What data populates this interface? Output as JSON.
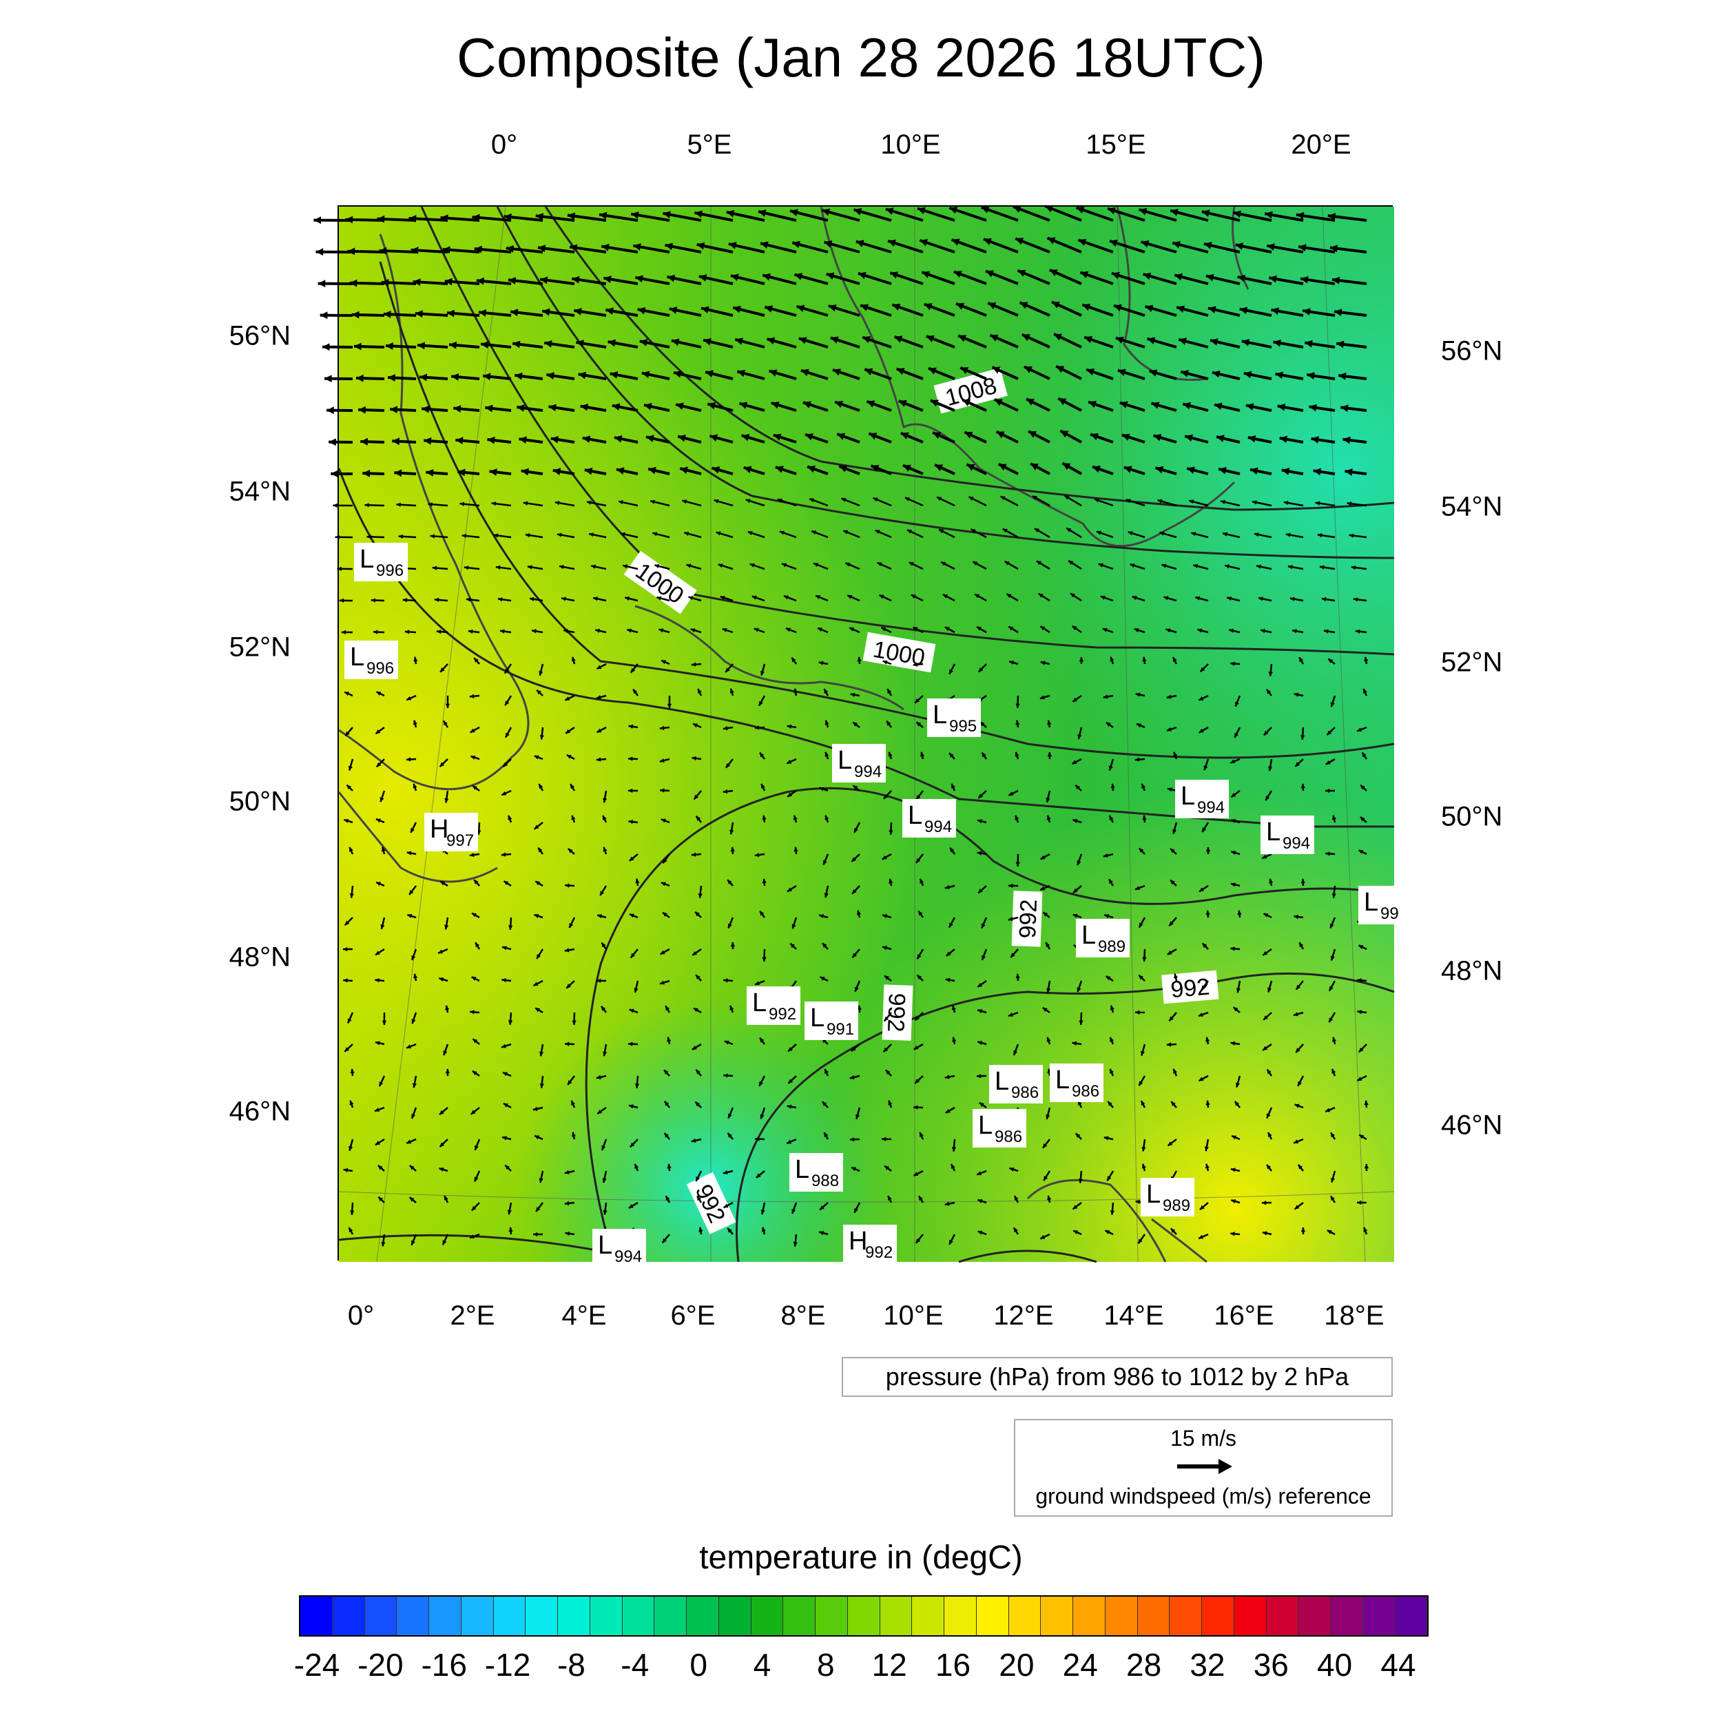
{
  "title": "Composite (Jan 28 2026 18UTC)",
  "map": {
    "top_lon_ticks": [
      "0°",
      "5°E",
      "10°E",
      "15°E",
      "20°E"
    ],
    "bottom_lon_ticks": [
      "0°",
      "2°E",
      "4°E",
      "6°E",
      "8°E",
      "10°E",
      "12°E",
      "14°E",
      "16°E",
      "18°E"
    ],
    "left_lat_ticks": [
      "56°N",
      "54°N",
      "52°N",
      "50°N",
      "48°N",
      "46°N"
    ],
    "right_lat_ticks": [
      "56°N",
      "54°N",
      "52°N",
      "50°N",
      "48°N",
      "46°N"
    ],
    "isobar_labels": [
      "1008",
      "1000",
      "1000",
      "992",
      "992",
      "992",
      "992"
    ],
    "pressure_centers": [
      {
        "type": "L",
        "value": "996"
      },
      {
        "type": "L",
        "value": "996"
      },
      {
        "type": "H",
        "value": "997"
      },
      {
        "type": "L",
        "value": "995"
      },
      {
        "type": "L",
        "value": "994"
      },
      {
        "type": "L",
        "value": "994"
      },
      {
        "type": "L",
        "value": "994"
      },
      {
        "type": "L",
        "value": "994"
      },
      {
        "type": "L",
        "value": "99"
      },
      {
        "type": "L",
        "value": "989"
      },
      {
        "type": "L",
        "value": "992"
      },
      {
        "type": "L",
        "value": "991"
      },
      {
        "type": "L",
        "value": "986"
      },
      {
        "type": "L",
        "value": "986"
      },
      {
        "type": "L",
        "value": "986"
      },
      {
        "type": "L",
        "value": "988"
      },
      {
        "type": "L",
        "value": "989"
      },
      {
        "type": "H",
        "value": "992"
      },
      {
        "type": "L",
        "value": "994"
      }
    ]
  },
  "legend": {
    "pressure": "pressure (hPa) from 986 to 1012 by 2 hPa",
    "wind_ref_speed": "15 m/s",
    "wind_ref_label": "ground windspeed (m/s) reference"
  },
  "colorbar": {
    "title": "temperature in (degC)",
    "labels": [
      "-24",
      "-20",
      "-16",
      "-12",
      "-8",
      "-4",
      "0",
      "4",
      "8",
      "12",
      "16",
      "20",
      "24",
      "28",
      "32",
      "36",
      "40",
      "44"
    ],
    "colors": [
      "#0000ff",
      "#0a2cff",
      "#1450ff",
      "#1874ff",
      "#1898ff",
      "#18b8ff",
      "#10d4ff",
      "#08eaf0",
      "#00f0d8",
      "#00eab8",
      "#00e098",
      "#00d078",
      "#00c050",
      "#00b030",
      "#14b414",
      "#34c010",
      "#58cc08",
      "#80d800",
      "#a8e000",
      "#cce600",
      "#eeec00",
      "#fff000",
      "#ffd800",
      "#ffc000",
      "#ffa400",
      "#ff8800",
      "#ff6c00",
      "#ff4c00",
      "#ff2800",
      "#f00010",
      "#d00030",
      "#b00050",
      "#900070",
      "#780090",
      "#6000a0"
    ],
    "color_count_note": ""
  },
  "colors": {
    "field_cold": "#2fd89a",
    "field_mid": "#3cc63a",
    "field_warm": "#c9e400"
  }
}
